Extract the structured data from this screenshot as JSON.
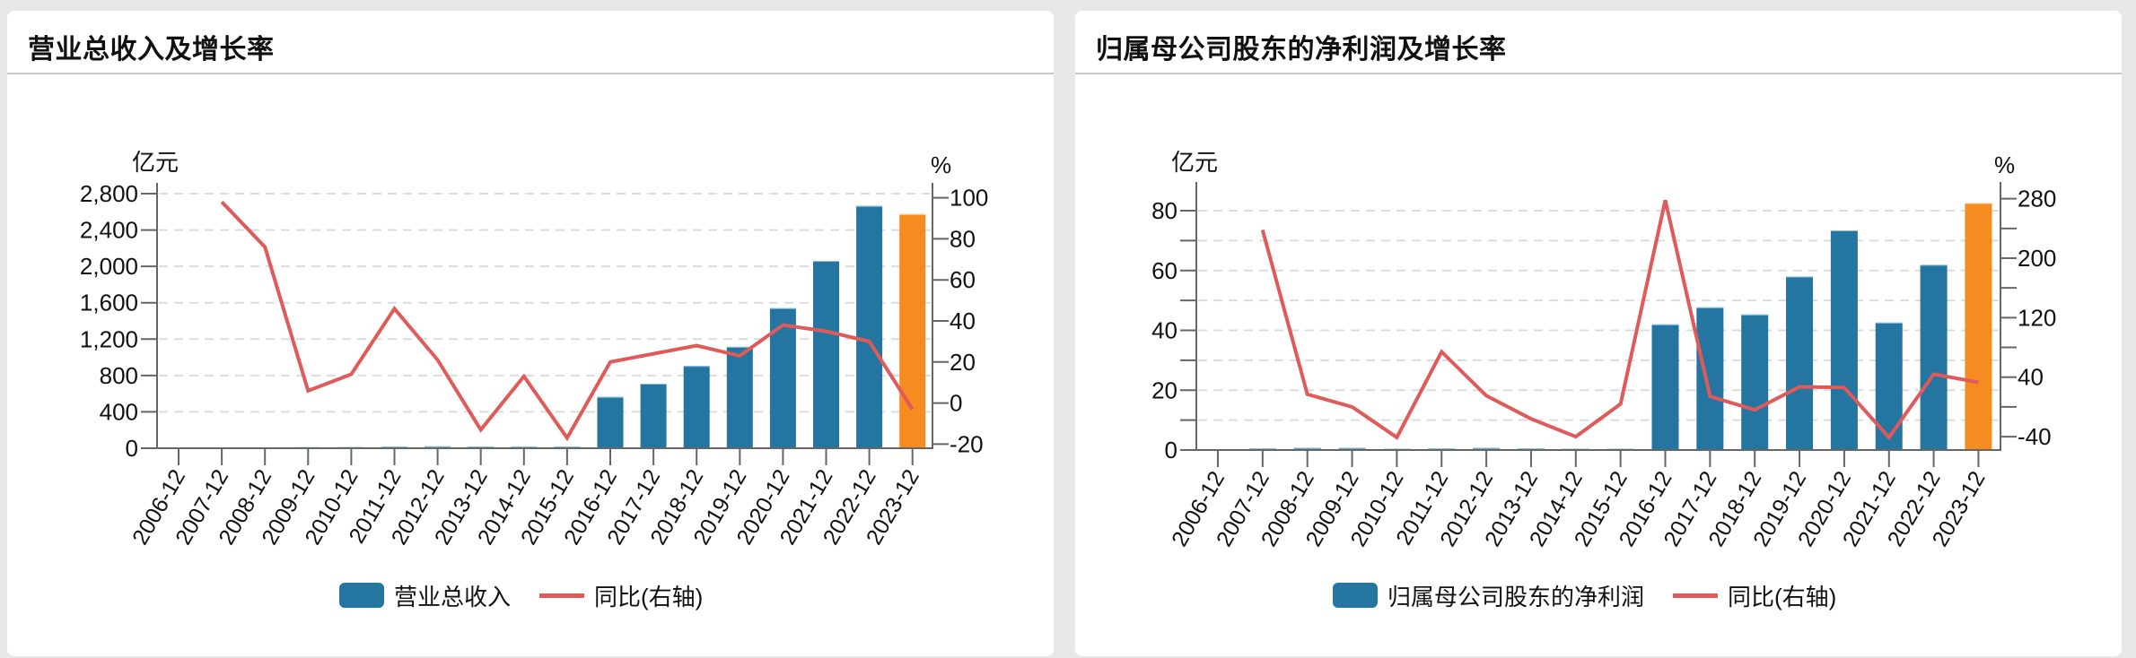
{
  "colors": {
    "bar": "#2475a0",
    "bar_top": "#8fc1dc",
    "bar_highlight": "#f68b1f",
    "line": "#e05a5a",
    "grid": "#dcdcdc",
    "axis": "#666666"
  },
  "panels": [
    {
      "title": "营业总收入及增长率",
      "left_unit": "亿元",
      "right_unit": "%",
      "legend": {
        "bar_label": "营业总收入",
        "line_label": "同比(右轴)"
      }
    },
    {
      "title": "归属母公司股东的净利润及增长率",
      "left_unit": "亿元",
      "right_unit": "%",
      "legend": {
        "bar_label": "归属母公司股东的净利润",
        "line_label": "同比(右轴)"
      }
    }
  ],
  "chart_data": [
    {
      "type": "bar",
      "title": "营业总收入及增长率",
      "xlabel": "",
      "ylabel": "亿元",
      "y2label": "%",
      "categories": [
        "2006-12",
        "2007-12",
        "2008-12",
        "2009-12",
        "2010-12",
        "2011-12",
        "2012-12",
        "2013-12",
        "2014-12",
        "2015-12",
        "2016-12",
        "2017-12",
        "2018-12",
        "2019-12",
        "2020-12",
        "2021-12",
        "2022-12",
        "2023-12"
      ],
      "series": [
        {
          "name": "营业总收入",
          "type": "bar",
          "axis": "left",
          "values": [
            3,
            6,
            10,
            11,
            12,
            17,
            21,
            18,
            20,
            17,
            565,
            710,
            905,
            1115,
            1540,
            2060,
            2665,
            2575
          ],
          "highlight_last": true
        },
        {
          "name": "同比(右轴)",
          "type": "line",
          "axis": "right",
          "values": [
            null,
            98,
            76,
            6,
            14,
            46,
            21,
            -13,
            13,
            -17,
            20,
            24,
            28,
            23,
            38,
            35,
            30,
            -3
          ]
        }
      ],
      "ylim": [
        0,
        2800
      ],
      "yticks": [
        0,
        400,
        800,
        1200,
        1600,
        2000,
        2400,
        2800
      ],
      "ytick_labels": [
        "0",
        "400",
        "800",
        "1,200",
        "1,600",
        "2,000",
        "2,400",
        "2,800"
      ],
      "y2lim": [
        -22,
        102
      ],
      "y2ticks": [
        -20,
        0,
        20,
        40,
        60,
        80,
        100
      ],
      "y2tick_labels": [
        "-20",
        "0",
        "20",
        "40",
        "60",
        "80",
        "100"
      ],
      "grid": true,
      "legend_position": "bottom"
    },
    {
      "type": "bar",
      "title": "归属母公司股东的净利润及增长率",
      "xlabel": "",
      "ylabel": "亿元",
      "y2label": "%",
      "categories": [
        "2006-12",
        "2007-12",
        "2008-12",
        "2009-12",
        "2010-12",
        "2011-12",
        "2012-12",
        "2013-12",
        "2014-12",
        "2015-12",
        "2016-12",
        "2017-12",
        "2018-12",
        "2019-12",
        "2020-12",
        "2021-12",
        "2022-12",
        "2023-12"
      ],
      "series": [
        {
          "name": "归属母公司股东的净利润",
          "type": "bar",
          "axis": "left",
          "values": [
            0.3,
            0.6,
            0.7,
            0.7,
            0.4,
            0.6,
            0.7,
            0.6,
            0.4,
            0.4,
            42,
            47.7,
            45.3,
            58,
            73.4,
            42.6,
            61.9,
            82.5
          ],
          "highlight_last": true
        },
        {
          "name": "同比(右轴)",
          "type": "line",
          "axis": "right",
          "values": [
            null,
            238,
            17,
            0,
            -41,
            74,
            15,
            -16,
            -40,
            4,
            278,
            14,
            -4,
            27,
            26,
            -41,
            44,
            33
          ]
        }
      ],
      "ylim": [
        0,
        86
      ],
      "yticks": [
        0,
        20,
        40,
        60,
        80
      ],
      "ytick_labels": [
        "0",
        "20",
        "40",
        "60",
        "80"
      ],
      "y_minor_ticks": [
        10,
        30,
        50,
        70
      ],
      "y2lim": [
        -58,
        288
      ],
      "y2ticks": [
        -40,
        0,
        40,
        80,
        120,
        160,
        200,
        240,
        280
      ],
      "y2tick_labels": [
        "-40",
        "",
        "40",
        "",
        "120",
        "",
        "200",
        "",
        "280"
      ],
      "grid": true,
      "legend_position": "bottom"
    }
  ]
}
